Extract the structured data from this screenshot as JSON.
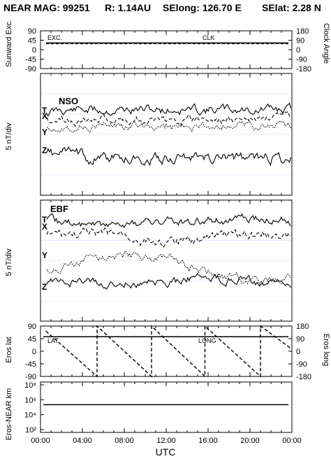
{
  "header": {
    "mission": "NEAR MAG: 99251",
    "range": "R: 1.14AU",
    "selong": "SElong:  126.70 E",
    "selat": "SElat:    2.28 N"
  },
  "x_axis": {
    "label": "UTC",
    "ticks": [
      "00:00",
      "04:00",
      "08:00",
      "12:00",
      "16:00",
      "20:00",
      "00:00"
    ]
  },
  "chart_data": [
    {
      "type": "line",
      "panel": "sunward",
      "ylabel": "Sunward Exc.",
      "ylabel_right": "Clock Angle",
      "ylim": [
        -90,
        90
      ],
      "ylim_right": [
        -180,
        180
      ],
      "yticks": [
        "90",
        "45",
        "0",
        "-45",
        "-90"
      ],
      "yticks_right": [
        "180",
        "90",
        "0",
        "-90",
        "-180"
      ],
      "annotations": [
        "EXC.",
        "CLK"
      ],
      "series": [
        {
          "values_hours": [
            0,
            24
          ],
          "values": [
            32,
            32
          ],
          "style": "solid"
        },
        {
          "values_hours": [
            0,
            24
          ],
          "values": [
            29,
            29
          ],
          "style": "dashed"
        }
      ]
    },
    {
      "type": "line",
      "panel": "nso",
      "title": "NSO",
      "ylabel": "5 nT/div",
      "component_labels": [
        "T",
        "X",
        "Y",
        "Z"
      ]
    },
    {
      "type": "line",
      "panel": "ebf",
      "title": "EBF",
      "ylabel": "5 nT/div",
      "component_labels": [
        "T",
        "X",
        "Y",
        "Z"
      ]
    },
    {
      "type": "line",
      "panel": "eros",
      "ylabel": "Eros lat",
      "ylabel_right": "Eros long",
      "ylim": [
        -90,
        90
      ],
      "ylim_right": [
        -180,
        180
      ],
      "yticks": [
        "90",
        "45",
        "0",
        "-45",
        "-90"
      ],
      "yticks_right": [
        "180",
        "90",
        "0",
        "-90",
        "-180"
      ],
      "annotations": [
        "LAT",
        "LONG"
      ],
      "series": [
        {
          "x": [
            0,
            24
          ],
          "values": [
            52,
            52
          ],
          "style": "solid"
        },
        {
          "x": [
            0.5,
            5.4,
            5.4,
            10.6,
            10.6,
            15.7,
            15.7,
            21,
            21,
            24
          ],
          "values_right": [
            145,
            -180,
            180,
            -180,
            180,
            -180,
            180,
            -180,
            180,
            15
          ],
          "style": "dashed"
        }
      ]
    },
    {
      "type": "line",
      "panel": "distance",
      "ylabel": "Eros-NEAR km",
      "yscale": "log",
      "yticks": [
        "10⁸",
        "10⁶",
        "10⁴",
        "10²"
      ],
      "series": [
        {
          "x": [
            0,
            24
          ],
          "values": [
            250000,
            250000
          ],
          "style": "solid"
        }
      ]
    }
  ]
}
